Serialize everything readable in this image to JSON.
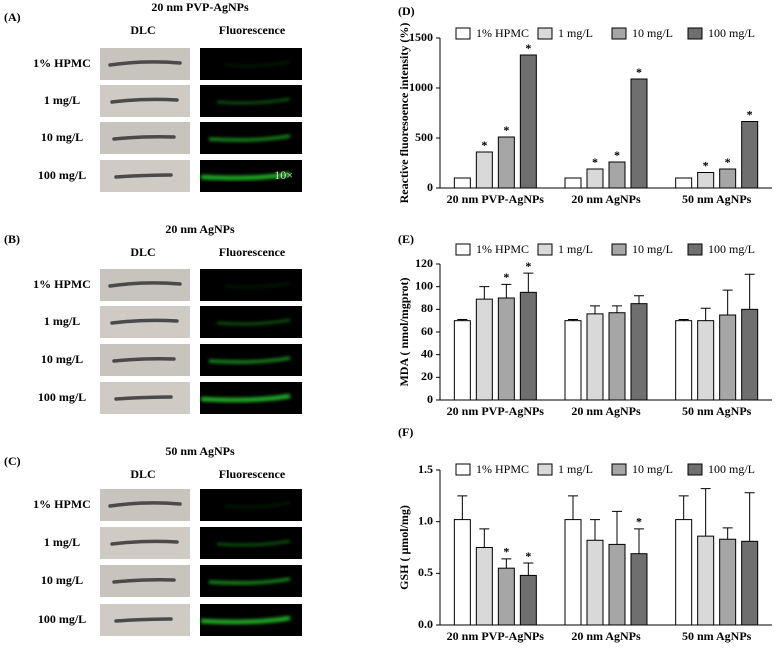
{
  "panels": [
    {
      "label": "(A)",
      "title": "20 nm PVP-AgNPs",
      "columns": [
        "DLC",
        "Fluorescence"
      ],
      "rows": [
        "1% HPMC",
        "1 mg/L",
        "10 mg/L",
        "100 mg/L"
      ],
      "magnification": "10×"
    },
    {
      "label": "(B)",
      "title": "20 nm AgNPs",
      "columns": [
        "DLC",
        "Fluorescence"
      ],
      "rows": [
        "1% HPMC",
        "1 mg/L",
        "10 mg/L",
        "100 mg/L"
      ]
    },
    {
      "label": "(C)",
      "title": "50 nm AgNPs",
      "columns": [
        "DLC",
        "Fluorescence"
      ],
      "rows": [
        "1% HPMC",
        "1 mg/L",
        "10 mg/L",
        "100 mg/L"
      ]
    }
  ],
  "chart_data": [
    {
      "type": "bar",
      "panel": "(D)",
      "y_label": "Reactive fluoresoence intensity (%)",
      "categories": [
        "20 nm PVP-AgNPs",
        "20 nm AgNPs",
        "50 nm AgNPs"
      ],
      "series": [
        {
          "name": "1% HPMC",
          "color": "#ffffff",
          "values": [
            100,
            100,
            100
          ]
        },
        {
          "name": "1 mg/L",
          "color": "#d9d9d9",
          "values": [
            360,
            190,
            155
          ],
          "significance": [
            "*",
            "*",
            "*"
          ]
        },
        {
          "name": "10 mg/L",
          "color": "#a6a6a6",
          "values": [
            510,
            260,
            190
          ],
          "significance": [
            "*",
            "*",
            "*"
          ]
        },
        {
          "name": "100 mg/L",
          "color": "#6f6f6f",
          "values": [
            1330,
            1090,
            665
          ],
          "significance": [
            "*",
            "*",
            "*"
          ]
        }
      ],
      "ylim": [
        0,
        1500
      ],
      "yticks": [
        0,
        500,
        1000,
        1500
      ],
      "legend": "top"
    },
    {
      "type": "bar",
      "panel": "(E)",
      "y_label": "MDA ( nmol/mgprot)",
      "categories": [
        "20 nm PVP-AgNPs",
        "20 nm AgNPs",
        "50 nm AgNPs"
      ],
      "series": [
        {
          "name": "1% HPMC",
          "color": "#ffffff",
          "values": [
            70,
            70,
            70
          ],
          "errors": [
            1,
            1,
            1
          ]
        },
        {
          "name": "1 mg/L",
          "color": "#d9d9d9",
          "values": [
            89,
            76,
            70
          ],
          "errors": [
            11,
            7,
            11
          ]
        },
        {
          "name": "10 mg/L",
          "color": "#a6a6a6",
          "values": [
            90,
            77,
            75
          ],
          "errors": [
            12,
            6,
            22
          ],
          "significance": [
            "*",
            null,
            null
          ]
        },
        {
          "name": "100 mg/L",
          "color": "#6f6f6f",
          "values": [
            95,
            85,
            80
          ],
          "errors": [
            17,
            7,
            31
          ],
          "significance": [
            "*",
            null,
            null
          ]
        }
      ],
      "ylim": [
        0,
        120
      ],
      "yticks": [
        0,
        20,
        40,
        60,
        80,
        100,
        120
      ],
      "legend": "top"
    },
    {
      "type": "bar",
      "panel": "(F)",
      "y_label": "GSH ( μmol/mg)",
      "categories": [
        "20 nm PVP-AgNPs",
        "20 nm AgNPs",
        "50 nm AgNPs"
      ],
      "series": [
        {
          "name": "1% HPMC",
          "color": "#ffffff",
          "values": [
            1.02,
            1.02,
            1.02
          ],
          "errors": [
            0.23,
            0.23,
            0.23
          ]
        },
        {
          "name": "1 mg/L",
          "color": "#d9d9d9",
          "values": [
            0.75,
            0.82,
            0.86
          ],
          "errors": [
            0.18,
            0.2,
            0.46
          ]
        },
        {
          "name": "10 mg/L",
          "color": "#a6a6a6",
          "values": [
            0.55,
            0.78,
            0.83
          ],
          "errors": [
            0.09,
            0.32,
            0.11
          ],
          "significance": [
            "*",
            null,
            null
          ]
        },
        {
          "name": "100 mg/L",
          "color": "#6f6f6f",
          "values": [
            0.48,
            0.69,
            0.81
          ],
          "errors": [
            0.12,
            0.24,
            0.47
          ],
          "significance": [
            "*",
            "*",
            null
          ]
        }
      ],
      "ylim": [
        0,
        1.5
      ],
      "yticks": [
        {
          "value": 0,
          "label": "0.0"
        },
        0.5,
        {
          "value": 1,
          "label": "1.0"
        },
        1.5
      ],
      "legend": "top"
    }
  ]
}
